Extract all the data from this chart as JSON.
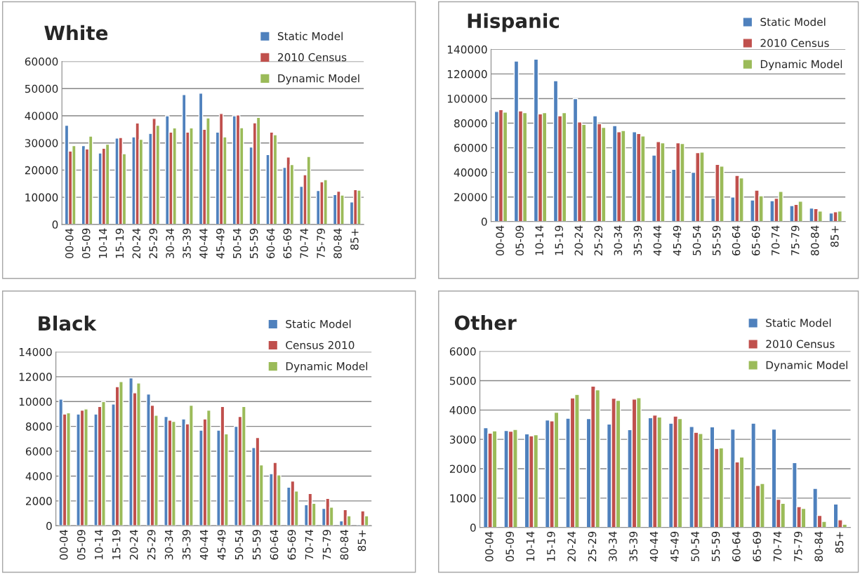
{
  "chart_data": [
    {
      "type": "bar",
      "title": "White",
      "categories": [
        "00-04",
        "05-09",
        "10-14",
        "15-19",
        "20-24",
        "25-29",
        "30-34",
        "35-39",
        "40-44",
        "45-49",
        "50-54",
        "55-59",
        "60-64",
        "65-69",
        "70-74",
        "75-79",
        "80-84",
        "85+"
      ],
      "series": [
        {
          "name": "Static Model",
          "color": "#4f81bd",
          "values": [
            36500,
            29000,
            26300,
            31800,
            32200,
            33500,
            40000,
            47800,
            48300,
            34000,
            40000,
            28500,
            25700,
            21000,
            14000,
            12500,
            11000,
            8300
          ]
        },
        {
          "name": "2010 Census",
          "color": "#c0504d",
          "values": [
            27000,
            27800,
            28000,
            32000,
            37300,
            39000,
            34000,
            34000,
            35000,
            40800,
            40300,
            37400,
            34000,
            24800,
            18300,
            15700,
            12200,
            12800
          ]
        },
        {
          "name": "Dynamic Model",
          "color": "#9bbb59",
          "values": [
            29000,
            32500,
            29500,
            26000,
            31300,
            36500,
            35500,
            35500,
            39200,
            32200,
            35600,
            39400,
            33000,
            22000,
            25000,
            16500,
            10800,
            12600
          ]
        }
      ],
      "ylim": [
        0,
        60000
      ],
      "yticks": [
        0,
        10000,
        20000,
        30000,
        40000,
        50000,
        60000
      ],
      "grid": "y",
      "legend": "top right"
    },
    {
      "type": "bar",
      "title": "Hispanic",
      "categories": [
        "00-04",
        "05-09",
        "10-14",
        "15-19",
        "20-24",
        "25-29",
        "30-34",
        "35-39",
        "40-44",
        "45-49",
        "50-54",
        "55-59",
        "60-64",
        "65-69",
        "70-74",
        "75-79",
        "80-84",
        "85+"
      ],
      "series": [
        {
          "name": "Static Model",
          "color": "#4f81bd",
          "values": [
            89500,
            130500,
            132000,
            114500,
            100000,
            86000,
            78000,
            73000,
            54000,
            42500,
            40000,
            19000,
            20000,
            17500,
            17000,
            13000,
            11000,
            7000
          ]
        },
        {
          "name": "2010 Census",
          "color": "#c0504d",
          "values": [
            91000,
            90000,
            87500,
            86000,
            81000,
            79500,
            73000,
            71500,
            65000,
            64000,
            56000,
            46500,
            37500,
            25500,
            19000,
            14000,
            10500,
            8000
          ]
        },
        {
          "name": "Dynamic Model",
          "color": "#9bbb59",
          "values": [
            89000,
            88500,
            88500,
            88500,
            79000,
            76500,
            74000,
            69500,
            64000,
            63500,
            56500,
            45000,
            35500,
            21000,
            24500,
            16500,
            8500,
            8500
          ]
        }
      ],
      "ylim": [
        0,
        140000
      ],
      "yticks": [
        0,
        20000,
        40000,
        60000,
        80000,
        100000,
        120000,
        140000
      ],
      "grid": "y",
      "legend": "top right"
    },
    {
      "type": "bar",
      "title": "Black",
      "categories": [
        "00-04",
        "05-09",
        "10-14",
        "15-19",
        "20-24",
        "25-29",
        "30-34",
        "35-39",
        "40-44",
        "45-49",
        "50-54",
        "55-59",
        "60-64",
        "65-69",
        "70-74",
        "75-79",
        "80-84",
        "85+"
      ],
      "series": [
        {
          "name": "Static Model",
          "color": "#4f81bd",
          "values": [
            10200,
            9000,
            9000,
            9800,
            11900,
            10600,
            8800,
            8600,
            7700,
            7700,
            8000,
            6300,
            4200,
            3100,
            1700,
            1400,
            400,
            100
          ]
        },
        {
          "name": "Census 2010",
          "color": "#c0504d",
          "values": [
            9000,
            9300,
            9600,
            11200,
            10700,
            9700,
            8500,
            8200,
            8600,
            9600,
            8800,
            7100,
            5100,
            3600,
            2600,
            2200,
            1300,
            1200
          ]
        },
        {
          "name": "Dynamic Model",
          "color": "#9bbb59",
          "values": [
            9100,
            9400,
            10000,
            11600,
            11500,
            8900,
            8400,
            9700,
            9300,
            7400,
            9600,
            4900,
            4100,
            2800,
            1800,
            1500,
            800,
            800
          ]
        }
      ],
      "ylim": [
        0,
        14000
      ],
      "yticks": [
        0,
        2000,
        4000,
        6000,
        8000,
        10000,
        12000,
        14000
      ],
      "grid": "y",
      "legend": "top right"
    },
    {
      "type": "bar",
      "title": "Other",
      "categories": [
        "00-04",
        "05-09",
        "10-14",
        "15-19",
        "20-24",
        "25-29",
        "30-34",
        "35-39",
        "40-44",
        "45-49",
        "50-54",
        "55-59",
        "60-64",
        "65-69",
        "70-74",
        "75-79",
        "80-84",
        "85+"
      ],
      "series": [
        {
          "name": "Static Model",
          "color": "#4f81bd",
          "values": [
            3400,
            3300,
            3190,
            3660,
            3720,
            3710,
            3520,
            3330,
            3740,
            3550,
            3440,
            3430,
            3350,
            3550,
            3350,
            2210,
            1330,
            800
          ]
        },
        {
          "name": "2010 Census",
          "color": "#c0504d",
          "values": [
            3210,
            3280,
            3120,
            3630,
            4410,
            4810,
            4400,
            4370,
            3830,
            3790,
            3240,
            2690,
            2230,
            1430,
            960,
            710,
            410,
            260
          ]
        },
        {
          "name": "Dynamic Model",
          "color": "#9bbb59",
          "values": [
            3290,
            3340,
            3160,
            3920,
            4530,
            4690,
            4330,
            4420,
            3760,
            3710,
            3200,
            2710,
            2400,
            1500,
            820,
            650,
            210,
            110
          ]
        }
      ],
      "ylim": [
        0,
        6000
      ],
      "yticks": [
        0,
        1000,
        2000,
        3000,
        4000,
        5000,
        6000
      ],
      "grid": "y",
      "legend": "top right"
    }
  ]
}
